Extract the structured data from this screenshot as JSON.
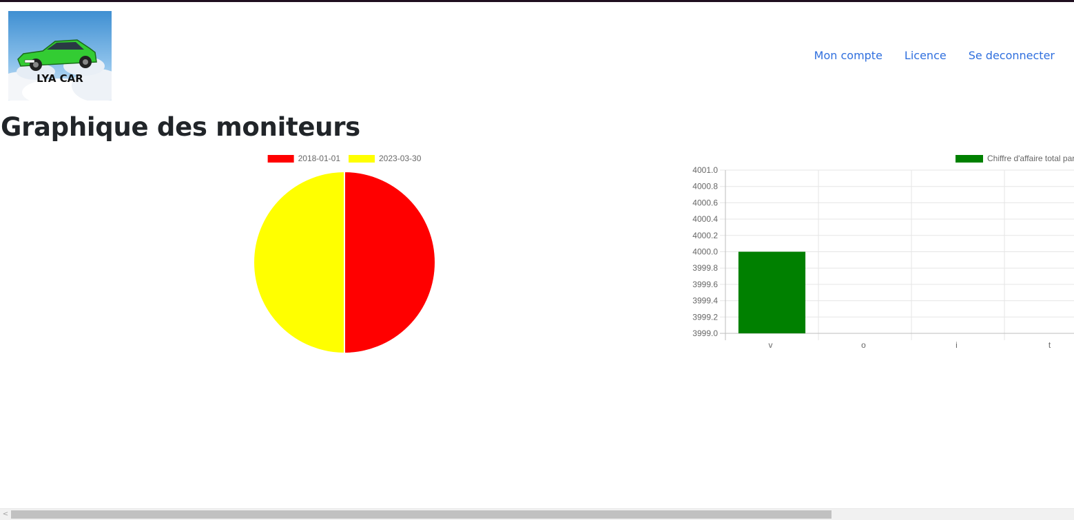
{
  "logo": {
    "text": "LYA CAR"
  },
  "nav": {
    "account": "Mon compte",
    "licence": "Licence",
    "logout": "Se deconnecter"
  },
  "page": {
    "title": "Graphique des moniteurs"
  },
  "chart_data": [
    {
      "type": "pie",
      "labels": [
        "2018-01-01",
        "2023-03-30"
      ],
      "values": [
        1,
        1
      ],
      "colors": [
        "#ff0000",
        "#ffff00"
      ],
      "legend_position": "top"
    },
    {
      "type": "bar",
      "categories": [
        "v",
        "o",
        "i",
        "t"
      ],
      "series": [
        {
          "name": "Chiffre d'affaire total par",
          "values": [
            4000,
            null,
            null,
            null
          ],
          "color": "#008000"
        }
      ],
      "ylim": [
        3999.0,
        4001.0
      ],
      "yticks": [
        "4001.0",
        "4000.8",
        "4000.6",
        "4000.4",
        "4000.2",
        "4000.0",
        "3999.8",
        "3999.6",
        "3999.4",
        "3999.2",
        "3999.0"
      ],
      "grid": true,
      "legend_position": "top"
    }
  ]
}
